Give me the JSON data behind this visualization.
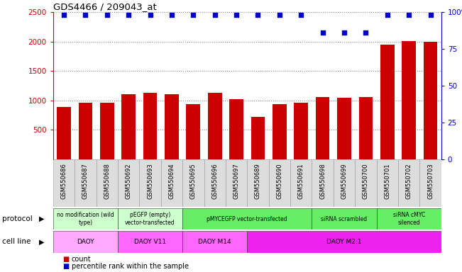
{
  "title": "GDS4466 / 209043_at",
  "samples": [
    "GSM550686",
    "GSM550687",
    "GSM550688",
    "GSM550692",
    "GSM550693",
    "GSM550694",
    "GSM550695",
    "GSM550696",
    "GSM550697",
    "GSM550689",
    "GSM550690",
    "GSM550691",
    "GSM550698",
    "GSM550699",
    "GSM550700",
    "GSM550701",
    "GSM550702",
    "GSM550703"
  ],
  "counts": [
    890,
    960,
    960,
    1100,
    1130,
    1100,
    940,
    1130,
    1020,
    720,
    940,
    960,
    1060,
    1040,
    1060,
    1950,
    2010,
    2000
  ],
  "percentile_ranks": [
    98,
    98,
    98,
    98,
    98,
    98,
    98,
    98,
    98,
    98,
    98,
    98,
    86,
    86,
    86,
    98,
    98,
    98
  ],
  "bar_color": "#cc0000",
  "dot_color": "#0000cc",
  "ylim_left": [
    0,
    2500
  ],
  "ylim_right": [
    0,
    100
  ],
  "yticks_left": [
    500,
    1000,
    1500,
    2000,
    2500
  ],
  "yticks_right": [
    0,
    25,
    50,
    75,
    100
  ],
  "protocol_groups": [
    {
      "label": "no modification (wild\ntype)",
      "start": 0,
      "end": 3,
      "color": "#ccffcc"
    },
    {
      "label": "pEGFP (empty)\nvector-transfected",
      "start": 3,
      "end": 6,
      "color": "#ccffcc"
    },
    {
      "label": "pMYCEGFP vector-transfected",
      "start": 6,
      "end": 12,
      "color": "#66ee66"
    },
    {
      "label": "siRNA scrambled",
      "start": 12,
      "end": 15,
      "color": "#66ee66"
    },
    {
      "label": "siRNA cMYC\nsilenced",
      "start": 15,
      "end": 18,
      "color": "#66ee66"
    }
  ],
  "cell_line_groups": [
    {
      "label": "DAOY",
      "start": 0,
      "end": 3,
      "color": "#ffaaff"
    },
    {
      "label": "DAOY V11",
      "start": 3,
      "end": 6,
      "color": "#ff66ff"
    },
    {
      "label": "DAOY M14",
      "start": 6,
      "end": 9,
      "color": "#ff66ff"
    },
    {
      "label": "DAOY M2.1",
      "start": 9,
      "end": 18,
      "color": "#ee22ee"
    }
  ],
  "bg_color": "#ffffff",
  "grid_color": "#888888",
  "axis_color_left": "#cc0000",
  "axis_color_right": "#0000cc",
  "xticklabel_bg": "#dddddd"
}
